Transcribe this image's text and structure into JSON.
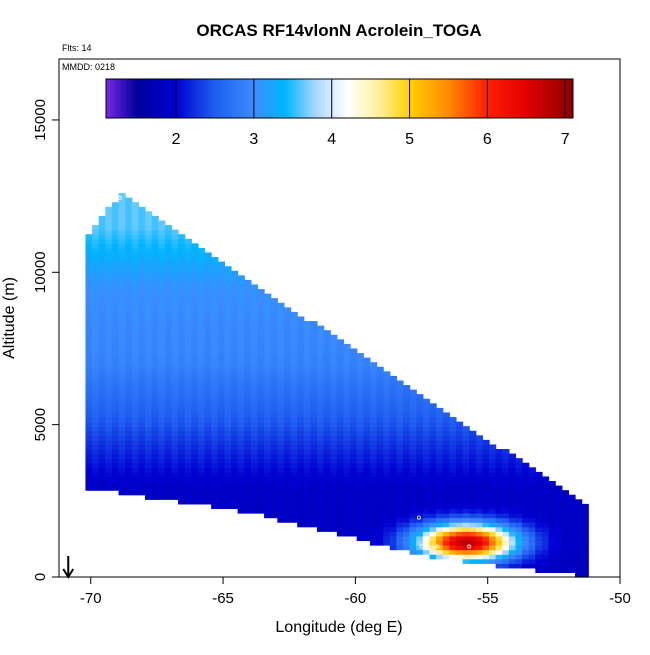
{
  "chart_data": {
    "type": "heatmap",
    "title": "ORCAS RF14vlonN Acrolein_TOGA",
    "xlabel": "Longitude (deg E)",
    "ylabel": "Altitude (m)",
    "xlim": [
      -71.2,
      -50
    ],
    "ylim": [
      0,
      17000
    ],
    "xticks": [
      -70,
      -65,
      -60,
      -55,
      -50
    ],
    "yticks": [
      0,
      5000,
      10000,
      15000
    ],
    "annotations": {
      "flights": "Flts: 14",
      "mmdd": "MMDD: 0218"
    },
    "colorbar": {
      "range": [
        1.1,
        7.1
      ],
      "ticks": [
        2,
        3,
        4,
        5,
        6,
        7
      ],
      "stops": [
        {
          "v": 1.1,
          "c": "#7a28e6"
        },
        {
          "v": 1.5,
          "c": "#00009a"
        },
        {
          "v": 2.0,
          "c": "#0000d2"
        },
        {
          "v": 2.5,
          "c": "#1f5ff0"
        },
        {
          "v": 3.0,
          "c": "#3c8cff"
        },
        {
          "v": 3.4,
          "c": "#00b4ff"
        },
        {
          "v": 3.8,
          "c": "#aad8ff"
        },
        {
          "v": 4.2,
          "c": "#ffffff"
        },
        {
          "v": 4.6,
          "c": "#fff0a0"
        },
        {
          "v": 5.0,
          "c": "#ffd000"
        },
        {
          "v": 5.5,
          "c": "#ff8a00"
        },
        {
          "v": 6.0,
          "c": "#ff1e00"
        },
        {
          "v": 6.5,
          "c": "#e10000"
        },
        {
          "v": 7.1,
          "c": "#8c0000"
        }
      ]
    },
    "field": {
      "lon_range": [
        -70.2,
        -51.3
      ],
      "cell_lon": 0.25,
      "cell_alt": 150,
      "upper_edge": [
        [
          -70.2,
          11000
        ],
        [
          -68.9,
          12500
        ],
        [
          -51.3,
          2300
        ]
      ],
      "lower_edge": [
        [
          -70.2,
          3000
        ],
        [
          -64,
          2200
        ],
        [
          -57,
          700
        ],
        [
          -51.3,
          100
        ]
      ],
      "background_profile": [
        [
          0,
          1.8
        ],
        [
          3000,
          1.9
        ],
        [
          5000,
          2.45
        ],
        [
          7000,
          2.9
        ],
        [
          9500,
          3.05
        ],
        [
          11500,
          3.6
        ]
      ],
      "plume": {
        "center_lon": -55.8,
        "center_alt": 1150,
        "peak": 6.8,
        "sigma_lon": 1.3,
        "sigma_alt": 420
      }
    },
    "markers": [
      [
        -68.9,
        12450
      ],
      [
        -57.6,
        1950
      ],
      [
        -57.5,
        1000
      ],
      [
        -56.9,
        1000
      ],
      [
        -56.8,
        150
      ],
      [
        -55.7,
        1000
      ],
      [
        -51.1,
        2350
      ],
      [
        -51.1,
        950
      ],
      [
        -50.9,
        150
      ]
    ],
    "arrow_lon": -70.85
  }
}
